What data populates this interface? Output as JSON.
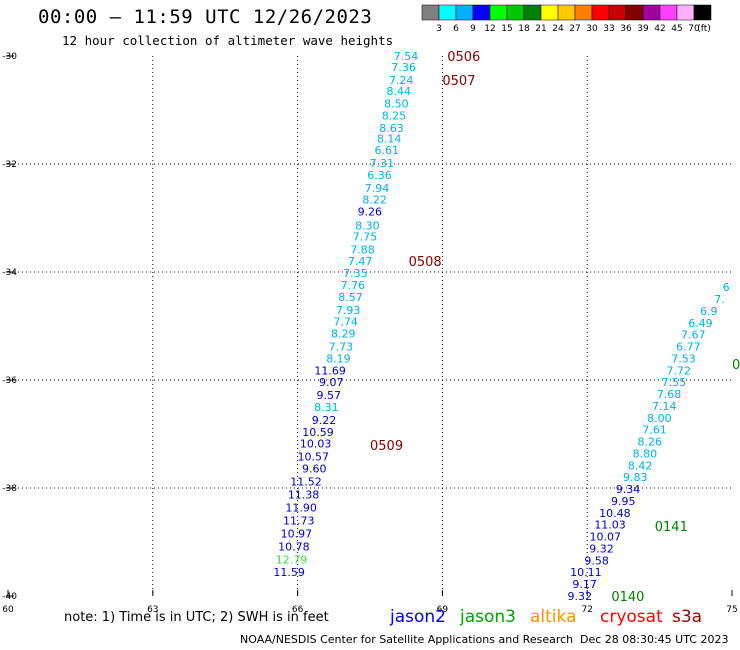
{
  "header": {
    "title": "00:00 – 11:59 UTC 12/26/2023",
    "subtitle": "12 hour collection of altimeter wave heights"
  },
  "colorbar": {
    "bins": [
      {
        "color": "#808080",
        "label": "3"
      },
      {
        "color": "#00ffff",
        "label": "6"
      },
      {
        "color": "#00b0ff",
        "label": "9"
      },
      {
        "color": "#0000ff",
        "label": "12"
      },
      {
        "color": "#00ff00",
        "label": "15"
      },
      {
        "color": "#00c800",
        "label": "18"
      },
      {
        "color": "#008000",
        "label": "21"
      },
      {
        "color": "#ffff00",
        "label": "24"
      },
      {
        "color": "#ffc800",
        "label": "27"
      },
      {
        "color": "#ff8000",
        "label": "30"
      },
      {
        "color": "#ff0000",
        "label": "33"
      },
      {
        "color": "#c80000",
        "label": "36"
      },
      {
        "color": "#800000",
        "label": "39"
      },
      {
        "color": "#a000a0",
        "label": "42"
      },
      {
        "color": "#ff40ff",
        "label": "45"
      },
      {
        "color": "#ffb0ff",
        "label": "70"
      },
      {
        "color": "#000000",
        "label": ""
      }
    ],
    "unit": "(ft)"
  },
  "map": {
    "lat_range": [
      -40,
      -30
    ],
    "lon_range": [
      60,
      75
    ],
    "lat_ticks": [
      "-30",
      "-32",
      "-34",
      "-36",
      "-38",
      "-40"
    ],
    "lat_values": [
      -30,
      -32,
      -34,
      -36,
      -38,
      -40
    ],
    "lon_ticks": [
      "60",
      "63",
      "66",
      "69",
      "72",
      "75"
    ],
    "lon_values": [
      60,
      63,
      66,
      69,
      72,
      75
    ],
    "grid": "dotted"
  },
  "colors": {
    "cyan": "#00b0e0",
    "blue": "#0000c0",
    "green": "#40e040",
    "time": "#800000",
    "time_green": "#008000"
  },
  "tracks": [
    {
      "name": "west-track",
      "points": [
        {
          "lat": -30.0,
          "lon": 68.5,
          "swh": "7.54",
          "c": "cyan"
        },
        {
          "lat": -30.2,
          "lon": 68.45,
          "swh": "7.36",
          "c": "cyan"
        },
        {
          "lat": -30.44,
          "lon": 68.4,
          "swh": "7.24",
          "c": "cyan"
        },
        {
          "lat": -30.65,
          "lon": 68.35,
          "swh": "8.44",
          "c": "cyan"
        },
        {
          "lat": -30.88,
          "lon": 68.3,
          "swh": "8.50",
          "c": "cyan"
        },
        {
          "lat": -31.1,
          "lon": 68.25,
          "swh": "8.25",
          "c": "cyan"
        },
        {
          "lat": -31.33,
          "lon": 68.2,
          "swh": "8.63",
          "c": "cyan"
        },
        {
          "lat": -31.53,
          "lon": 68.15,
          "swh": "8.14",
          "c": "cyan"
        },
        {
          "lat": -31.74,
          "lon": 68.1,
          "swh": "6.61",
          "c": "cyan"
        },
        {
          "lat": -31.98,
          "lon": 68.0,
          "swh": "7.31",
          "c": "cyan"
        },
        {
          "lat": -32.2,
          "lon": 67.95,
          "swh": "6.36",
          "c": "cyan"
        },
        {
          "lat": -32.44,
          "lon": 67.9,
          "swh": "7.94",
          "c": "cyan"
        },
        {
          "lat": -32.66,
          "lon": 67.85,
          "swh": "8.22",
          "c": "cyan"
        },
        {
          "lat": -32.88,
          "lon": 67.75,
          "swh": "9.26",
          "c": "blue"
        },
        {
          "lat": -33.14,
          "lon": 67.7,
          "swh": "8.30",
          "c": "cyan"
        },
        {
          "lat": -33.34,
          "lon": 67.65,
          "swh": "7.75",
          "c": "cyan"
        },
        {
          "lat": -33.58,
          "lon": 67.6,
          "swh": "7.88",
          "c": "cyan"
        },
        {
          "lat": -33.8,
          "lon": 67.55,
          "swh": "7.47",
          "c": "cyan"
        },
        {
          "lat": -34.02,
          "lon": 67.45,
          "swh": "7.35",
          "c": "cyan"
        },
        {
          "lat": -34.24,
          "lon": 67.4,
          "swh": "7.76",
          "c": "cyan"
        },
        {
          "lat": -34.46,
          "lon": 67.35,
          "swh": "8.57",
          "c": "cyan"
        },
        {
          "lat": -34.7,
          "lon": 67.3,
          "swh": "7.93",
          "c": "cyan"
        },
        {
          "lat": -34.92,
          "lon": 67.25,
          "swh": "7.74",
          "c": "cyan"
        },
        {
          "lat": -35.14,
          "lon": 67.2,
          "swh": "8.29",
          "c": "cyan"
        },
        {
          "lat": -35.38,
          "lon": 67.15,
          "swh": "7.73",
          "c": "cyan"
        },
        {
          "lat": -35.6,
          "lon": 67.1,
          "swh": "8.19",
          "c": "cyan"
        },
        {
          "lat": -35.82,
          "lon": 67.0,
          "swh": "11.69",
          "c": "blue"
        },
        {
          "lat": -36.04,
          "lon": 66.95,
          "swh": "9.07",
          "c": "blue"
        },
        {
          "lat": -36.28,
          "lon": 66.9,
          "swh": "9.57",
          "c": "blue"
        },
        {
          "lat": -36.5,
          "lon": 66.85,
          "swh": "8.31",
          "c": "cyan"
        },
        {
          "lat": -36.74,
          "lon": 66.8,
          "swh": "9.22",
          "c": "blue"
        },
        {
          "lat": -36.96,
          "lon": 66.75,
          "swh": "10.59",
          "c": "blue"
        },
        {
          "lat": -37.18,
          "lon": 66.7,
          "swh": "10.03",
          "c": "blue"
        },
        {
          "lat": -37.42,
          "lon": 66.65,
          "swh": "10.57",
          "c": "blue"
        },
        {
          "lat": -37.64,
          "lon": 66.6,
          "swh": "9.60",
          "c": "blue"
        },
        {
          "lat": -37.88,
          "lon": 66.5,
          "swh": "11.52",
          "c": "blue"
        },
        {
          "lat": -38.12,
          "lon": 66.45,
          "swh": "11.38",
          "c": "blue"
        },
        {
          "lat": -38.36,
          "lon": 66.4,
          "swh": "11.90",
          "c": "blue"
        },
        {
          "lat": -38.6,
          "lon": 66.35,
          "swh": "11.73",
          "c": "blue"
        },
        {
          "lat": -38.84,
          "lon": 66.3,
          "swh": "10.97",
          "c": "blue"
        },
        {
          "lat": -39.08,
          "lon": 66.25,
          "swh": "10.78",
          "c": "blue"
        },
        {
          "lat": -39.32,
          "lon": 66.2,
          "swh": "12.79",
          "c": "green"
        },
        {
          "lat": -39.56,
          "lon": 66.15,
          "swh": "11.59",
          "c": "blue"
        }
      ]
    },
    {
      "name": "east-track",
      "points": [
        {
          "lat": -40.0,
          "lon": 72.1,
          "swh": "9.32",
          "c": "blue"
        },
        {
          "lat": -39.78,
          "lon": 72.2,
          "swh": "9.17",
          "c": "blue"
        },
        {
          "lat": -39.56,
          "lon": 72.3,
          "swh": "10.11",
          "c": "blue"
        },
        {
          "lat": -39.34,
          "lon": 72.45,
          "swh": "9.58",
          "c": "blue"
        },
        {
          "lat": -39.12,
          "lon": 72.55,
          "swh": "9.32",
          "c": "blue"
        },
        {
          "lat": -38.9,
          "lon": 72.7,
          "swh": "10.07",
          "c": "blue"
        },
        {
          "lat": -38.68,
          "lon": 72.8,
          "swh": "11.03",
          "c": "blue"
        },
        {
          "lat": -38.46,
          "lon": 72.9,
          "swh": "10.48",
          "c": "blue"
        },
        {
          "lat": -38.24,
          "lon": 73.0,
          "swh": "9.95",
          "c": "blue"
        },
        {
          "lat": -38.02,
          "lon": 73.1,
          "swh": "9.34",
          "c": "blue"
        },
        {
          "lat": -37.8,
          "lon": 73.25,
          "swh": "9.83",
          "c": "cyan"
        },
        {
          "lat": -37.58,
          "lon": 73.35,
          "swh": "8.42",
          "c": "cyan"
        },
        {
          "lat": -37.36,
          "lon": 73.45,
          "swh": "8.80",
          "c": "cyan"
        },
        {
          "lat": -37.14,
          "lon": 73.55,
          "swh": "8.26",
          "c": "cyan"
        },
        {
          "lat": -36.92,
          "lon": 73.65,
          "swh": "7.61",
          "c": "cyan"
        },
        {
          "lat": -36.7,
          "lon": 73.75,
          "swh": "8.00",
          "c": "cyan"
        },
        {
          "lat": -36.48,
          "lon": 73.85,
          "swh": "7.14",
          "c": "cyan"
        },
        {
          "lat": -36.26,
          "lon": 73.95,
          "swh": "7.68",
          "c": "cyan"
        },
        {
          "lat": -36.04,
          "lon": 74.05,
          "swh": "7.55",
          "c": "cyan"
        },
        {
          "lat": -35.82,
          "lon": 74.15,
          "swh": "7.72",
          "c": "cyan"
        },
        {
          "lat": -35.6,
          "lon": 74.25,
          "swh": "7.53",
          "c": "cyan"
        },
        {
          "lat": -35.38,
          "lon": 74.35,
          "swh": "6.77",
          "c": "cyan"
        },
        {
          "lat": -35.16,
          "lon": 74.45,
          "swh": "7.67",
          "c": "cyan"
        },
        {
          "lat": -34.94,
          "lon": 74.6,
          "swh": "6.49",
          "c": "cyan"
        },
        {
          "lat": -34.72,
          "lon": 74.7,
          "swh": "6.9",
          "c": "cyan"
        },
        {
          "lat": -34.5,
          "lon": 74.85,
          "swh": "7.",
          "c": "cyan"
        },
        {
          "lat": -34.28,
          "lon": 74.95,
          "swh": "6",
          "c": "cyan"
        }
      ]
    }
  ],
  "time_labels": [
    {
      "text": "0506",
      "lat": -30.0,
      "lon": 69.1,
      "c": "time"
    },
    {
      "text": "0507",
      "lat": -30.44,
      "lon": 69.0,
      "c": "time"
    },
    {
      "text": "0508",
      "lat": -33.8,
      "lon": 68.3,
      "c": "time"
    },
    {
      "text": "0509",
      "lat": -37.2,
      "lon": 67.5,
      "c": "time"
    },
    {
      "text": "0141",
      "lat": -38.7,
      "lon": 73.4,
      "c": "time_green"
    },
    {
      "text": "0140",
      "lat": -40.0,
      "lon": 72.5,
      "c": "time_green"
    },
    {
      "text": "0",
      "lat": -35.7,
      "lon": 75.0,
      "c": "time_green"
    }
  ],
  "footer": {
    "note": "note:  1) Time is in UTC; 2) SWH is in feet",
    "satellites": [
      {
        "label": "jason2",
        "color": "#0000ff"
      },
      {
        "label": "jason3",
        "color": "#00a000"
      },
      {
        "label": "altika",
        "color": "#ff9000"
      },
      {
        "label": "cryosat",
        "color": "#ff0000"
      },
      {
        "label": "s3a",
        "color": "#a00000"
      }
    ],
    "credit": "NOAA/NESDIS Center for Satellite Applications and Research",
    "timestamp": "Dec 28 08:30:45 UTC 2023"
  }
}
